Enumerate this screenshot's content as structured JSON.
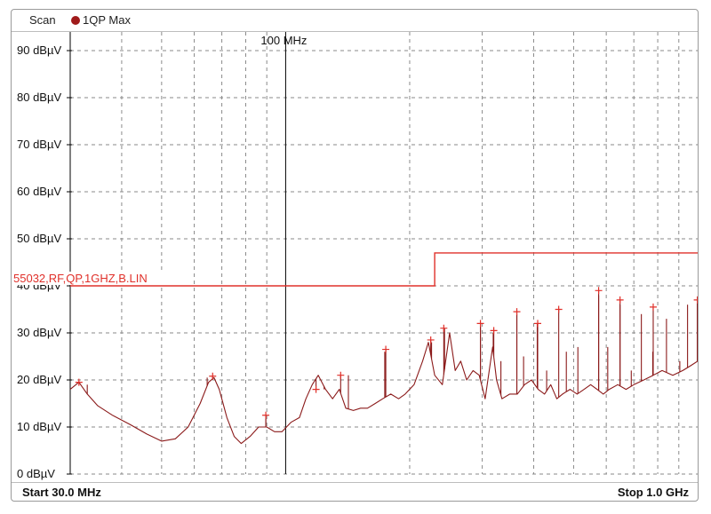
{
  "header": {
    "scan_label": "Scan",
    "trace_label": "1QP Max"
  },
  "footer": {
    "start_label": "Start 30.0 MHz",
    "stop_label": "Stop 1.0 GHz"
  },
  "colors": {
    "trace": "#8b1a1a",
    "limit": "#e0302a",
    "grid": "#8a8a8a",
    "axis": "#000000"
  },
  "chart_data": {
    "type": "line",
    "x_scale": "log",
    "xlim": [
      30,
      1000
    ],
    "ylim": [
      0,
      95
    ],
    "x_unit": "MHz",
    "y_unit": "dBµV",
    "y_ticks": [
      0,
      10,
      20,
      30,
      40,
      50,
      60,
      70,
      80,
      90
    ],
    "y_tick_labels": [
      "0 dBµV",
      "10 dBµV",
      "20 dBµV",
      "30 dBµV",
      "40 dBµV",
      "50 dBµV",
      "60 dBµV",
      "70 dBµV",
      "80 dBµV",
      "90 dBµV"
    ],
    "x_marker": {
      "value": 100,
      "label": "100 MHz"
    },
    "limit_line": {
      "name": "55032,RF,QP,1GHZ,B.LIN",
      "points": [
        [
          30,
          40
        ],
        [
          230,
          40
        ],
        [
          230,
          47
        ],
        [
          1000,
          47
        ]
      ]
    },
    "series": [
      {
        "trace": [
          [
            30,
            18
          ],
          [
            31.5,
            19.5
          ],
          [
            33,
            17
          ],
          [
            35,
            14.5
          ],
          [
            38,
            12.5
          ],
          [
            42,
            10.5
          ],
          [
            46,
            8.5
          ],
          [
            50,
            7
          ],
          [
            54,
            7.5
          ],
          [
            58,
            10
          ],
          [
            62,
            15
          ],
          [
            65,
            19.5
          ],
          [
            67,
            20.5
          ],
          [
            69,
            18
          ],
          [
            72,
            12
          ],
          [
            75,
            8
          ],
          [
            78,
            6.5
          ],
          [
            82,
            8
          ],
          [
            86,
            10
          ],
          [
            90,
            10
          ],
          [
            94,
            9
          ],
          [
            98,
            9
          ],
          [
            103,
            11
          ],
          [
            108,
            12
          ],
          [
            112,
            16
          ],
          [
            116,
            19
          ],
          [
            120,
            21
          ],
          [
            125,
            18
          ],
          [
            130,
            16
          ],
          [
            135,
            18
          ],
          [
            140,
            14
          ],
          [
            146,
            13.5
          ],
          [
            152,
            14
          ],
          [
            158,
            14
          ],
          [
            165,
            15
          ],
          [
            172,
            16
          ],
          [
            180,
            17
          ],
          [
            188,
            16
          ],
          [
            195,
            17
          ],
          [
            205,
            19
          ],
          [
            215,
            24
          ],
          [
            222,
            28
          ],
          [
            230,
            21
          ],
          [
            240,
            19
          ],
          [
            250,
            30
          ],
          [
            258,
            22
          ],
          [
            266,
            24
          ],
          [
            275,
            20
          ],
          [
            285,
            22
          ],
          [
            295,
            21
          ],
          [
            305,
            16
          ],
          [
            318,
            27
          ],
          [
            325,
            20
          ],
          [
            335,
            16
          ],
          [
            350,
            17
          ],
          [
            365,
            17
          ],
          [
            380,
            19
          ],
          [
            395,
            20
          ],
          [
            410,
            18
          ],
          [
            425,
            17
          ],
          [
            440,
            19
          ],
          [
            455,
            16
          ],
          [
            470,
            17
          ],
          [
            490,
            18
          ],
          [
            510,
            17
          ],
          [
            530,
            18
          ],
          [
            550,
            19
          ],
          [
            570,
            18
          ],
          [
            590,
            17
          ],
          [
            610,
            18
          ],
          [
            640,
            19
          ],
          [
            670,
            18
          ],
          [
            700,
            19
          ],
          [
            740,
            20
          ],
          [
            780,
            21
          ],
          [
            820,
            22
          ],
          [
            870,
            21
          ],
          [
            920,
            22
          ],
          [
            960,
            23
          ],
          [
            1000,
            24
          ]
        ],
        "spikes": [
          [
            33,
            19
          ],
          [
            64.5,
            20.5
          ],
          [
            89.5,
            12.5
          ],
          [
            124,
            18
          ],
          [
            142,
            21
          ],
          [
            174,
            26
          ],
          [
            226,
            28
          ],
          [
            243,
            31
          ],
          [
            297,
            32
          ],
          [
            319,
            30
          ],
          [
            333,
            24
          ],
          [
            364,
            34
          ],
          [
            378,
            25
          ],
          [
            408,
            32
          ],
          [
            430,
            22
          ],
          [
            480,
            26
          ],
          [
            512,
            27
          ],
          [
            575,
            38
          ],
          [
            605,
            27
          ],
          [
            648,
            36
          ],
          [
            690,
            22
          ],
          [
            730,
            34
          ],
          [
            778,
            26
          ],
          [
            840,
            33
          ],
          [
            905,
            24
          ],
          [
            945,
            36
          ],
          [
            998,
            37
          ]
        ],
        "peaks": [
          [
            31.5,
            19.5
          ],
          [
            66.5,
            20.8
          ],
          [
            89.5,
            12.5
          ],
          [
            118.5,
            18
          ],
          [
            136,
            21
          ],
          [
            175,
            26.5
          ],
          [
            225,
            28.5
          ],
          [
            242,
            31
          ],
          [
            297,
            32
          ],
          [
            320,
            30.5
          ],
          [
            364,
            34.5
          ],
          [
            409,
            32
          ],
          [
            460,
            35
          ],
          [
            575,
            39
          ],
          [
            648,
            37
          ],
          [
            780,
            35.5
          ],
          [
            998,
            37
          ]
        ]
      }
    ]
  }
}
